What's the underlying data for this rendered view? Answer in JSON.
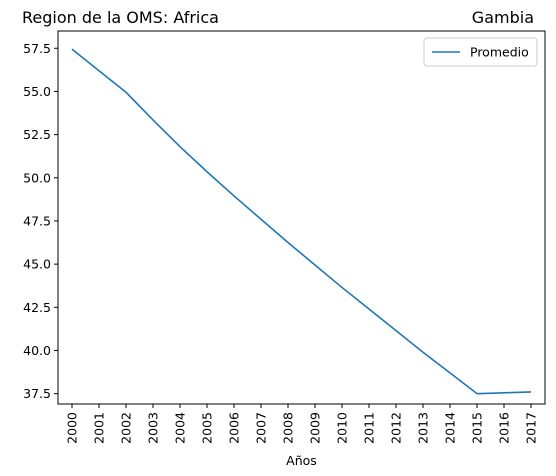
{
  "chart_data": {
    "type": "line",
    "title_left": "Region de la OMS: Africa",
    "title_right": "Gambia",
    "xlabel": "Años",
    "ylabel": "",
    "x": [
      "2000",
      "2001",
      "2002",
      "2003",
      "2004",
      "2005",
      "2006",
      "2007",
      "2008",
      "2009",
      "2010",
      "2011",
      "2012",
      "2013",
      "2014",
      "2015",
      "2016",
      "2017"
    ],
    "series": [
      {
        "name": "Promedio",
        "color": "#1f77b4",
        "values": [
          57.45,
          56.2,
          54.95,
          53.35,
          51.8,
          50.35,
          48.95,
          47.6,
          46.25,
          44.95,
          43.65,
          42.4,
          41.15,
          39.9,
          38.7,
          37.5,
          37.55,
          37.6
        ]
      }
    ],
    "yticks": [
      37.5,
      40.0,
      42.5,
      45.0,
      47.5,
      50.0,
      52.5,
      55.0,
      57.5
    ],
    "ytick_labels": [
      "37.5",
      "40.0",
      "42.5",
      "45.0",
      "47.5",
      "50.0",
      "52.5",
      "55.0",
      "57.5"
    ],
    "ylim": [
      36.9,
      58.5
    ],
    "grid": false,
    "legend_position": "top-right"
  }
}
